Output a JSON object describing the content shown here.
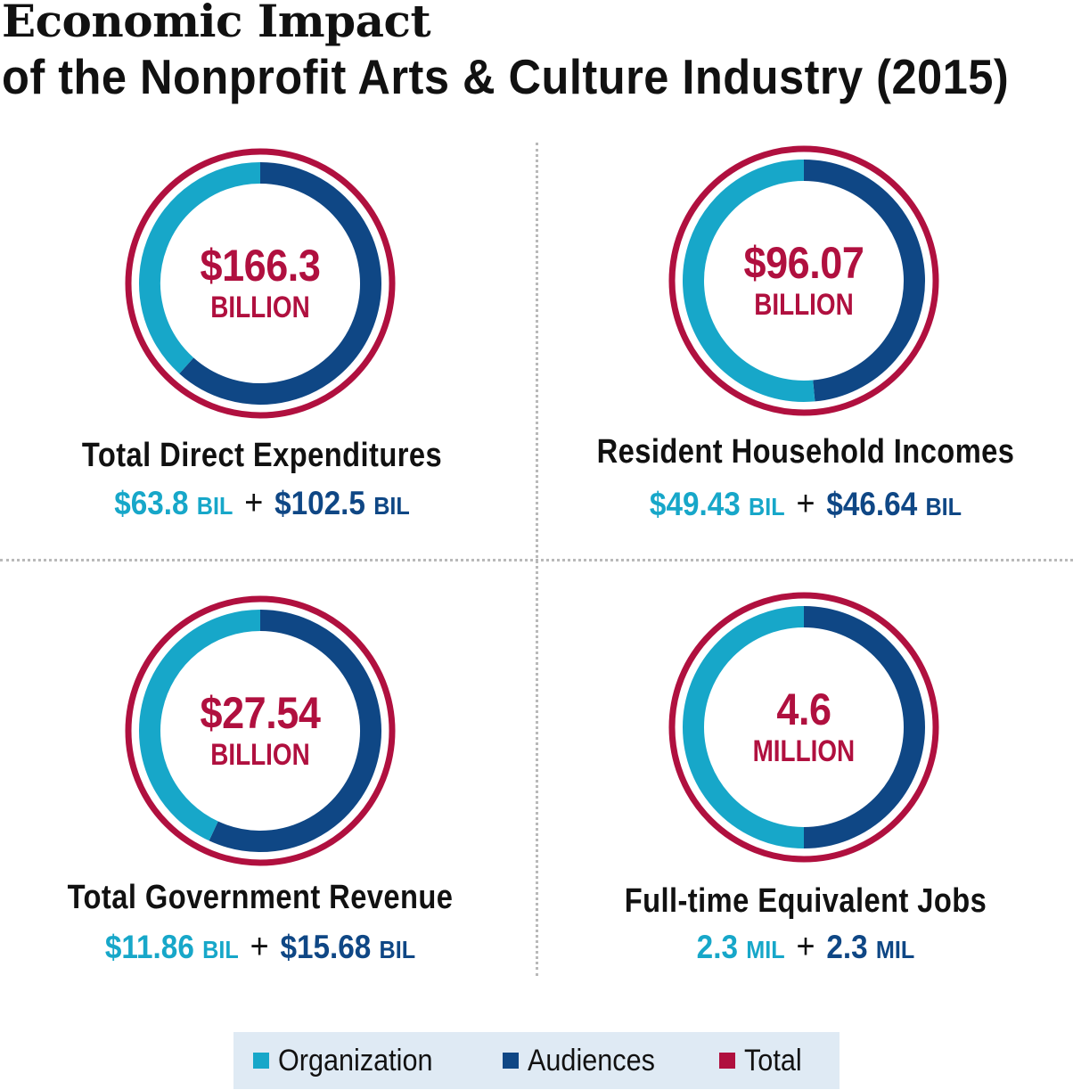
{
  "header": {
    "title": "Economic Impact",
    "subtitle": "of the Nonprofit Arts & Culture Industry (2015)"
  },
  "colors": {
    "organization": "#17a7c9",
    "audiences": "#0f4785",
    "total": "#b0103f",
    "divider": "#b9b9b9",
    "legend_bg": "#dfeaf4"
  },
  "metrics": [
    {
      "total_value": "$166.3",
      "total_unit": "BILLION",
      "label": "Total Direct Expenditures",
      "org_value": "$63.8",
      "org_unit": "BIL",
      "plus": "+",
      "aud_value": "$102.5",
      "aud_unit": "BIL"
    },
    {
      "total_value": "$96.07",
      "total_unit": "BILLION",
      "label": "Resident Household Incomes",
      "org_value": "$49.43",
      "org_unit": "BIL",
      "plus": "+",
      "aud_value": "$46.64",
      "aud_unit": "BIL"
    },
    {
      "total_value": "$27.54",
      "total_unit": "BILLION",
      "label": "Total Government Revenue",
      "org_value": "$11.86",
      "org_unit": "BIL",
      "plus": "+",
      "aud_value": "$15.68",
      "aud_unit": "BIL"
    },
    {
      "total_value": "4.6",
      "total_unit": "MILLION",
      "label": "Full-time Equivalent Jobs",
      "org_value": "2.3",
      "org_unit": "MIL",
      "plus": "+",
      "aud_value": "2.3",
      "aud_unit": "MIL"
    }
  ],
  "legend": {
    "items": [
      {
        "label": "Organization",
        "color": "#17a7c9"
      },
      {
        "label": "Audiences",
        "color": "#0f4785"
      },
      {
        "label": "Total",
        "color": "#b0103f"
      }
    ]
  },
  "chart_data": [
    {
      "type": "pie",
      "title": "Total Direct Expenditures",
      "categories": [
        "Organization",
        "Audiences"
      ],
      "values": [
        63.8,
        102.5
      ],
      "total": 166.3,
      "unit": "billion USD"
    },
    {
      "type": "pie",
      "title": "Resident Household Incomes",
      "categories": [
        "Organization",
        "Audiences"
      ],
      "values": [
        49.43,
        46.64
      ],
      "total": 96.07,
      "unit": "billion USD"
    },
    {
      "type": "pie",
      "title": "Total Government Revenue",
      "categories": [
        "Organization",
        "Audiences"
      ],
      "values": [
        11.86,
        15.68
      ],
      "total": 27.54,
      "unit": "billion USD"
    },
    {
      "type": "pie",
      "title": "Full-time Equivalent Jobs",
      "categories": [
        "Organization",
        "Audiences"
      ],
      "values": [
        2.3,
        2.3
      ],
      "total": 4.6,
      "unit": "million jobs"
    }
  ]
}
